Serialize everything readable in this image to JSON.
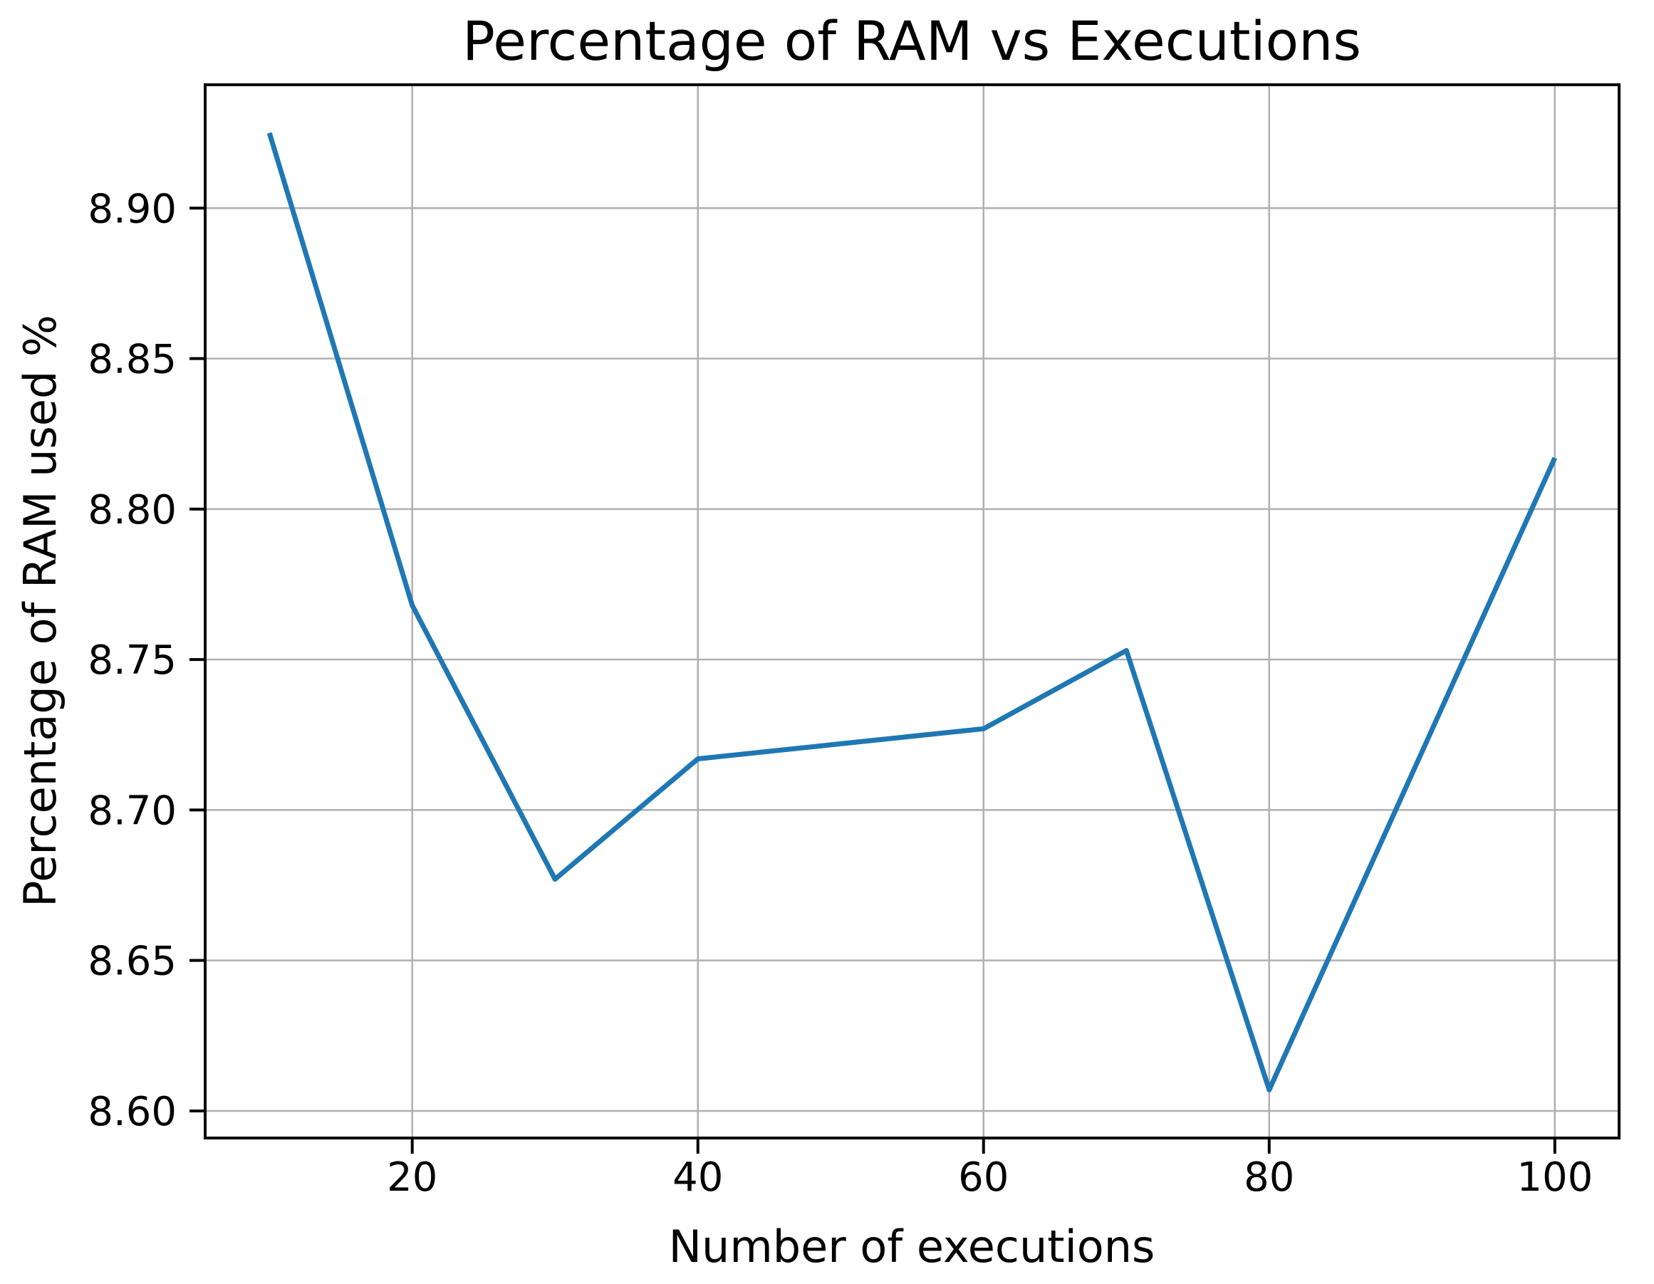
{
  "figure": {
    "title": "Percentage of RAM vs Executions",
    "xlabel": "Number of executions",
    "ylabel": "Percentage of RAM used %"
  },
  "chart_data": {
    "type": "line",
    "title": "Percentage of RAM vs Executions",
    "xlabel": "Number of executions",
    "ylabel": "Percentage of RAM used %",
    "x": [
      10,
      20,
      30,
      40,
      50,
      60,
      70,
      80,
      90,
      100
    ],
    "y": [
      8.925,
      8.768,
      8.677,
      8.717,
      8.722,
      8.727,
      8.753,
      8.607,
      8.712,
      8.817
    ],
    "xlim": [
      5.5,
      104.5
    ],
    "ylim": [
      8.591,
      8.941
    ],
    "x_tick_values": [
      20,
      40,
      60,
      80,
      100
    ],
    "x_tick_labels": [
      "20",
      "40",
      "60",
      "80",
      "100"
    ],
    "y_tick_values": [
      8.6,
      8.65,
      8.7,
      8.75,
      8.8,
      8.85,
      8.9
    ],
    "y_tick_labels": [
      "8.60",
      "8.65",
      "8.70",
      "8.75",
      "8.80",
      "8.85",
      "8.90"
    ],
    "grid": true,
    "legend": false,
    "line_color": "#1f77b4",
    "grid_color": "#b0b0b0",
    "spine_color": "#000000",
    "background_color": "#ffffff"
  }
}
